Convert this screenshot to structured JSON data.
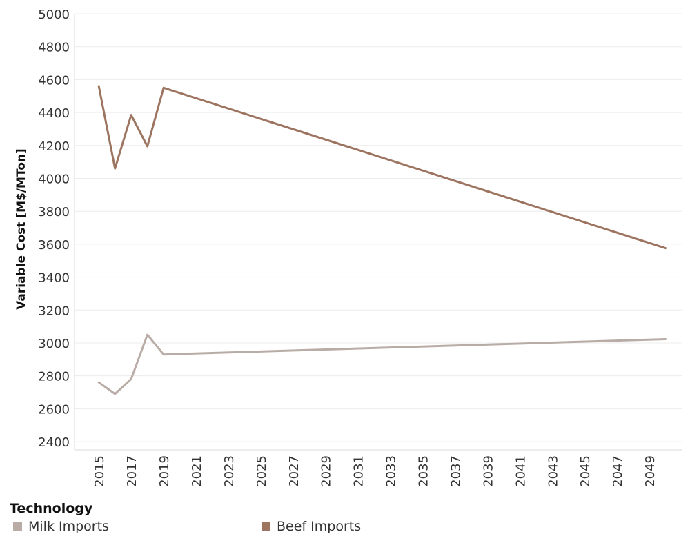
{
  "chart_data": {
    "type": "line",
    "ylabel": "Variable Cost [M$/MTon]",
    "xlabel": "",
    "ylim": [
      2350,
      5000
    ],
    "xlim": [
      2013.5,
      2051
    ],
    "yticks": [
      2400,
      2600,
      2800,
      3000,
      3200,
      3400,
      3600,
      3800,
      4000,
      4200,
      4400,
      4600,
      4800,
      5000
    ],
    "xticks": [
      2015,
      2017,
      2019,
      2021,
      2023,
      2025,
      2027,
      2029,
      2031,
      2033,
      2035,
      2037,
      2039,
      2041,
      2043,
      2045,
      2047,
      2049
    ],
    "grid": "horizontal",
    "series": [
      {
        "name": "Milk Imports",
        "color": "#b9aca6",
        "points": [
          [
            2015,
            2760
          ],
          [
            2016,
            2690
          ],
          [
            2017,
            2780
          ],
          [
            2018,
            3050
          ],
          [
            2019,
            2930
          ],
          [
            2050,
            3023
          ]
        ]
      },
      {
        "name": "Beef Imports",
        "color": "#9c7460",
        "points": [
          [
            2015,
            4560
          ],
          [
            2016,
            4060
          ],
          [
            2017,
            4385
          ],
          [
            2018,
            4195
          ],
          [
            2019,
            4550
          ],
          [
            2050,
            3576
          ]
        ]
      }
    ]
  },
  "legend": {
    "title": "Technology",
    "items": [
      {
        "label": "Milk Imports",
        "color": "#b9aca6"
      },
      {
        "label": "Beef Imports",
        "color": "#9c7460"
      }
    ]
  }
}
